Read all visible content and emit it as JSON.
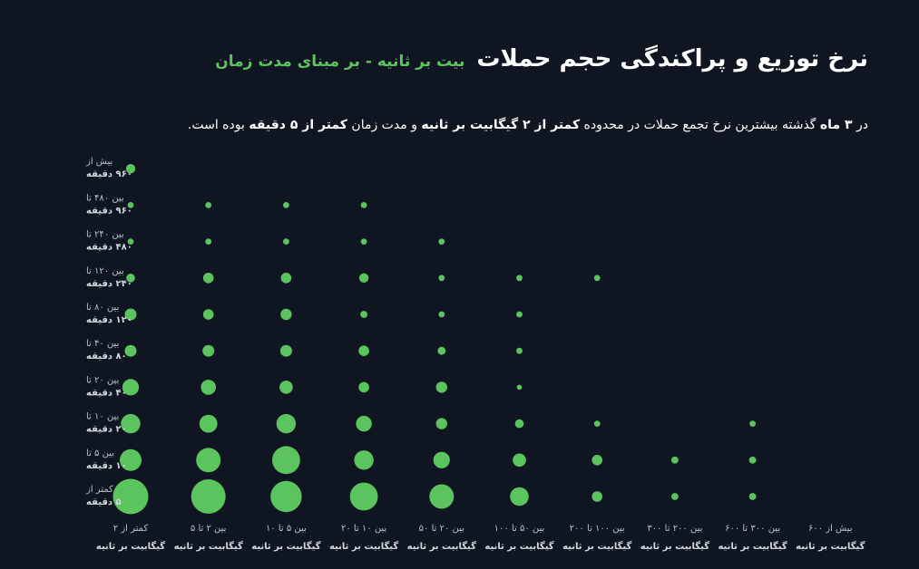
{
  "title": "نرخ توزیع و پراکندگی حجم حملات",
  "title_highlight": "بیت بر ثانیه - بر مبنای مدت زمان",
  "subtitle": {
    "p1": "در",
    "b1": "۳ ماه",
    "p2": "گذشته بیشترین نرخ تجمع حملات در محدوده",
    "b2": "کمتر از ۲ گیگابیت بر ثانیه",
    "p3": "و مدت زمان",
    "b3": "کمتر از ۵ دقیقه",
    "p4": "بوده است."
  },
  "colors": {
    "background": "#0f1621",
    "bubble": "#5cc45f",
    "title": "#ffffff",
    "highlight": "#5cc45f"
  },
  "chart_data": {
    "type": "scatter",
    "x_labels": [
      {
        "line1": "کمتر از ۲",
        "line2": "گیگابیت بر ثانیه"
      },
      {
        "line1": "بین ۲ تا ۵",
        "line2": "گیگابیت بر ثانیه"
      },
      {
        "line1": "بین ۵ تا ۱۰",
        "line2": "گیگابیت بر ثانیه"
      },
      {
        "line1": "بین ۱۰ تا ۲۰",
        "line2": "گیگابیت بر ثانیه"
      },
      {
        "line1": "بین ۲۰ تا ۵۰",
        "line2": "گیگابیت بر ثانیه"
      },
      {
        "line1": "بین ۵۰ تا ۱۰۰",
        "line2": "گیگابیت بر ثانیه"
      },
      {
        "line1": "بین ۱۰۰ تا ۲۰۰",
        "line2": "گیگابیت بر ثانیه"
      },
      {
        "line1": "بین ۲۰۰ تا ۳۰۰",
        "line2": "گیگابیت بر ثانیه"
      },
      {
        "line1": "بین ۳۰۰ تا ۶۰۰",
        "line2": "گیگابیت بر ثانیه"
      },
      {
        "line1": "بیش از ۶۰۰",
        "line2": "گیگابیت بر ثانیه"
      }
    ],
    "y_labels": [
      {
        "line1": "کمتر از",
        "line2": "۵ دقیقه"
      },
      {
        "line1": "بین ۵ تا",
        "line2": "۱۰ دقیقه"
      },
      {
        "line1": "بین ۱۰ تا",
        "line2": "۲۰ دقیقه"
      },
      {
        "line1": "بین ۲۰ تا",
        "line2": "۴۰ دقیقه"
      },
      {
        "line1": "بین ۴۰ تا",
        "line2": "۸۰ دقیقه"
      },
      {
        "line1": "بین ۸۰ تا",
        "line2": "۱۲۰ دقیقه"
      },
      {
        "line1": "بین ۱۲۰ تا",
        "line2": "۲۴۰ دقیقه"
      },
      {
        "line1": "بین ۲۴۰ تا",
        "line2": "۴۸۰ دقیقه"
      },
      {
        "line1": "بین ۴۸۰ تا",
        "line2": "۹۶۰ دقیقه"
      },
      {
        "line1": "بیش از",
        "line2": "۹۶۰ دقیقه"
      }
    ],
    "values": [
      [
        100,
        95,
        78,
        62,
        48,
        28,
        9,
        4,
        4,
        0
      ],
      [
        38,
        48,
        62,
        30,
        22,
        14,
        9,
        4,
        4,
        0
      ],
      [
        30,
        26,
        30,
        20,
        10,
        6,
        3,
        0,
        3,
        0
      ],
      [
        22,
        18,
        14,
        9,
        10,
        2,
        0,
        0,
        0,
        0
      ],
      [
        11,
        11,
        11,
        9,
        5,
        3,
        0,
        0,
        0,
        0
      ],
      [
        11,
        9,
        10,
        4,
        3,
        3,
        0,
        0,
        0,
        0
      ],
      [
        6,
        9,
        9,
        7,
        3,
        3,
        3,
        0,
        0,
        0
      ],
      [
        3,
        3,
        3,
        3,
        3,
        0,
        0,
        0,
        0,
        0
      ],
      [
        3,
        3,
        3,
        3,
        0,
        0,
        0,
        0,
        0,
        0
      ],
      [
        7,
        0,
        0,
        0,
        0,
        0,
        0,
        0,
        0,
        0
      ]
    ]
  }
}
